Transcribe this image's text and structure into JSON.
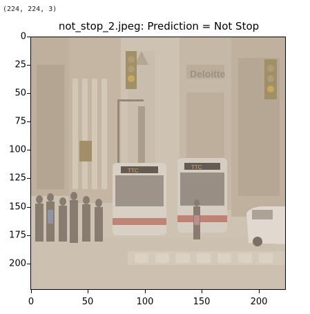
{
  "output": {
    "shape_text": "(224, 224, 3)"
  },
  "figure": {
    "title": "not_stop_2.jpeg: Prediction = Not Stop",
    "image_content": {
      "sign_text": "Deloitte",
      "bus_sign_left": "TTC",
      "bus_sign_right": "TTC"
    },
    "yticks": [
      "0",
      "25",
      "50",
      "75",
      "100",
      "125",
      "150",
      "175",
      "200"
    ],
    "xticks": [
      "0",
      "50",
      "100",
      "150",
      "200"
    ]
  }
}
